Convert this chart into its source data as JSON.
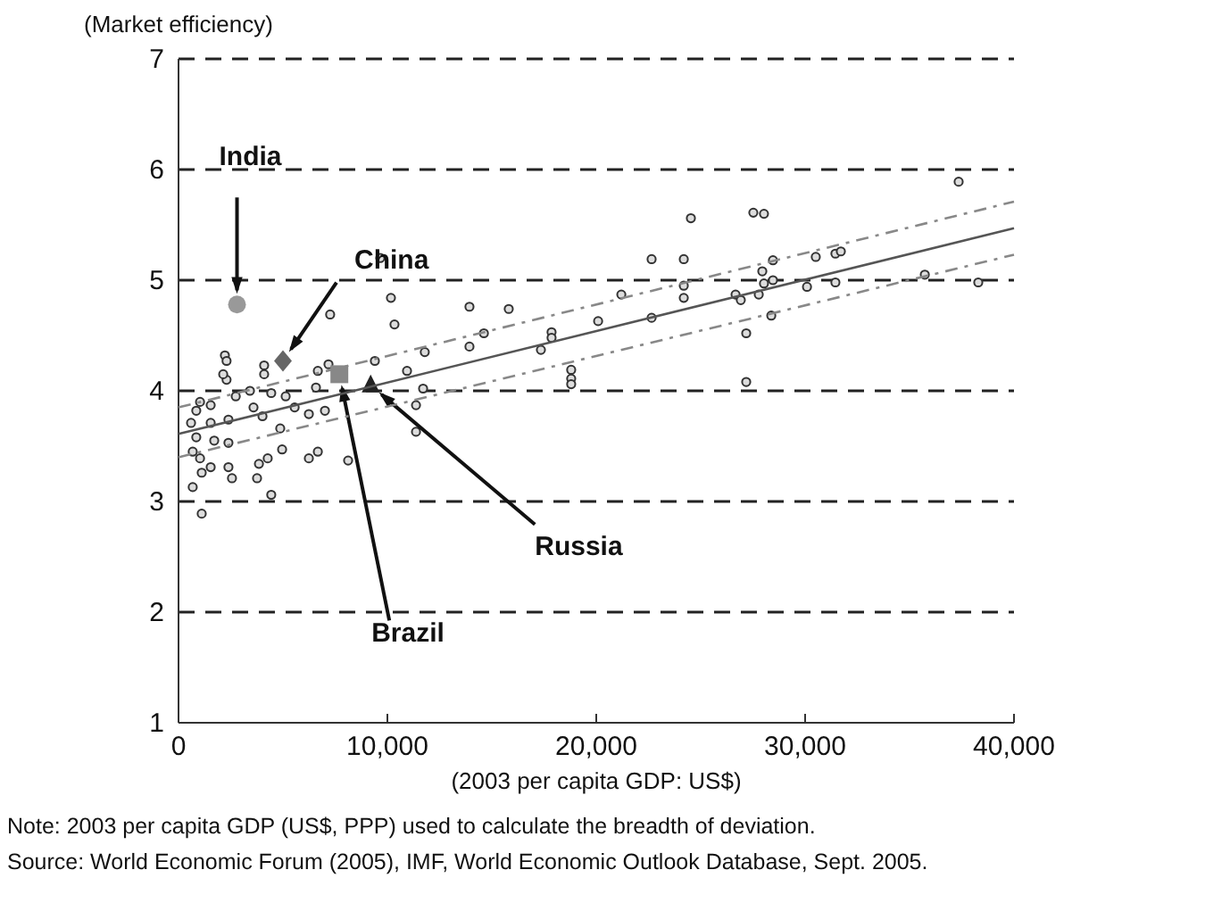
{
  "chart_data": {
    "type": "scatter",
    "ylabel": "(Market efficiency)",
    "xlabel": "(2003 per capita GDP: US$)",
    "xlim": [
      0,
      40000
    ],
    "ylim": [
      1,
      7
    ],
    "xticks": [
      {
        "value": 0,
        "label": "0"
      },
      {
        "value": 10000,
        "label": "10,000"
      },
      {
        "value": 20000,
        "label": "20,000"
      },
      {
        "value": 30000,
        "label": "30,000"
      },
      {
        "value": 40000,
        "label": "40,000"
      }
    ],
    "yticks": [
      1,
      2,
      3,
      4,
      5,
      6,
      7
    ],
    "grid": "y",
    "series": [
      {
        "color": "#333333",
        "marker": "circle",
        "x": [
          2220,
          2300,
          2300,
          4100,
          4100,
          7260,
          10170,
          10340,
          9660,
          7180,
          6670,
          9400,
          1030,
          850,
          1540,
          2740,
          3590,
          4440,
          5130,
          5560,
          6240,
          7010,
          6580,
          600,
          1540,
          2390,
          4020,
          4870,
          850,
          1710,
          2390,
          680,
          1030,
          2390,
          2560,
          1540,
          3850,
          4270,
          4960,
          3760,
          680,
          1110,
          6240,
          6670,
          8120,
          4440,
          1110,
          10940,
          11710,
          11370,
          11370,
          11790,
          2140,
          3420,
          13930,
          15810,
          13930,
          14620,
          17350,
          17860,
          17860,
          18800,
          18800,
          18800,
          20090,
          21200,
          22650,
          22650,
          24190,
          24530,
          24190,
          24190,
          27520,
          28030,
          37350,
          27950,
          28460,
          26670,
          26920,
          27780,
          28030,
          28460,
          27180,
          28380,
          30090,
          30510,
          31450,
          31710,
          31450,
          35730,
          38290,
          27180
        ],
        "values": [
          4.32,
          4.27,
          4.1,
          4.23,
          4.15,
          4.69,
          4.84,
          4.6,
          5.2,
          4.24,
          4.18,
          4.27,
          3.9,
          3.82,
          3.87,
          3.95,
          3.85,
          3.98,
          3.95,
          3.85,
          3.79,
          3.82,
          4.03,
          3.71,
          3.71,
          3.74,
          3.77,
          3.66,
          3.58,
          3.55,
          3.53,
          3.45,
          3.39,
          3.31,
          3.21,
          3.31,
          3.34,
          3.39,
          3.47,
          3.21,
          3.13,
          3.26,
          3.39,
          3.45,
          3.37,
          3.06,
          2.89,
          4.18,
          4.02,
          3.87,
          3.63,
          4.35,
          4.15,
          4.0,
          4.76,
          4.74,
          4.4,
          4.52,
          4.37,
          4.53,
          4.48,
          4.19,
          4.11,
          4.06,
          4.63,
          4.87,
          4.66,
          5.19,
          5.19,
          5.56,
          4.84,
          4.95,
          5.61,
          5.6,
          5.89,
          5.08,
          5.18,
          4.87,
          4.82,
          4.87,
          4.97,
          5.0,
          4.52,
          4.68,
          4.94,
          5.21,
          5.24,
          5.26,
          4.98,
          5.05,
          4.98,
          4.08
        ]
      },
      {
        "name": "India",
        "color": "#999999",
        "marker": "circle",
        "x": [
          2800
        ],
        "values": [
          4.78
        ]
      },
      {
        "name": "China",
        "color": "#666666",
        "marker": "diamond",
        "x": [
          5000
        ],
        "values": [
          4.27
        ]
      },
      {
        "name": "Brazil",
        "color": "#888888",
        "marker": "square",
        "x": [
          7700
        ],
        "values": [
          4.15
        ]
      },
      {
        "name": "Russia",
        "color": "#222222",
        "marker": "triangle",
        "x": [
          9200
        ],
        "values": [
          4.05
        ]
      },
      {
        "type": "line",
        "color": "#555555",
        "line_style": "solid",
        "x": [
          0,
          40000
        ],
        "values": [
          3.61,
          5.47
        ]
      },
      {
        "type": "line",
        "color": "#888888",
        "line_style": "dashed",
        "x": [
          0,
          40000
        ],
        "values": [
          3.85,
          5.71
        ]
      },
      {
        "type": "line",
        "color": "#888888",
        "line_style": "dashed",
        "x": [
          0,
          40000
        ],
        "values": [
          3.4,
          5.23
        ]
      }
    ],
    "annotations": [
      "Note: 2003 per capita GDP (US$, PPP) used to calculate the breadth of deviation.",
      "Source: World Economic Forum (2005), IMF, World Economic Outlook Database, Sept. 2005."
    ]
  }
}
